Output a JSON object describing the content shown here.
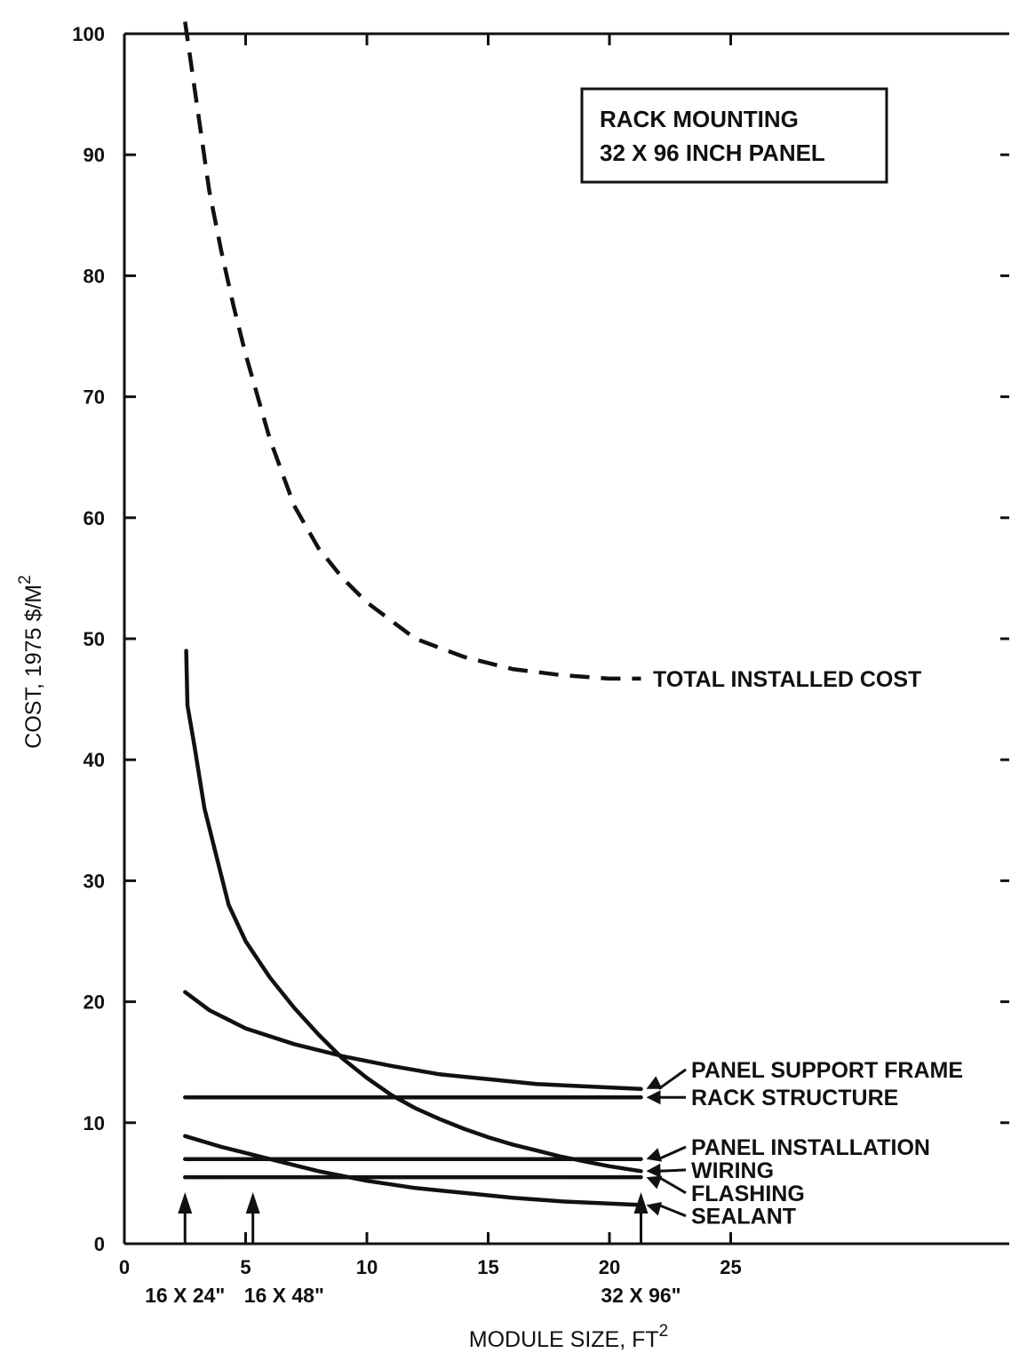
{
  "chart_data": {
    "type": "line",
    "title": "",
    "xlabel": "MODULE SIZE, FT",
    "xlabel_sup": "2",
    "ylabel": "COST, 1975 $/M",
    "ylabel_sup": "2",
    "xlim": [
      0,
      29
    ],
    "ylim": [
      0,
      100
    ],
    "x_ticks": [
      0,
      5,
      10,
      15,
      20,
      25
    ],
    "y_ticks": [
      0,
      10,
      20,
      30,
      40,
      50,
      60,
      70,
      80,
      90,
      100
    ],
    "grid": false,
    "annotation_box": [
      "RACK MOUNTING",
      "32 X 96 INCH PANEL"
    ],
    "markers": [
      {
        "x": 2.5,
        "label": "16 X 24\""
      },
      {
        "x": 5.3,
        "label": "16 X 48\""
      },
      {
        "x": 21.3,
        "label": "32 X 96\""
      }
    ],
    "series": [
      {
        "name": "TOTAL INSTALLED COST",
        "style": "dashed",
        "points": [
          [
            2.5,
            101
          ],
          [
            3,
            94
          ],
          [
            3.5,
            87
          ],
          [
            4,
            82
          ],
          [
            4.5,
            77.5
          ],
          [
            5,
            73.5
          ],
          [
            5.5,
            70
          ],
          [
            6,
            66.5
          ],
          [
            7,
            61
          ],
          [
            8,
            57.5
          ],
          [
            9,
            55
          ],
          [
            10,
            53
          ],
          [
            11,
            51.5
          ],
          [
            12,
            50
          ],
          [
            14,
            48.5
          ],
          [
            16,
            47.5
          ],
          [
            18,
            47
          ],
          [
            20,
            46.7
          ],
          [
            21.3,
            46.7
          ]
        ]
      },
      {
        "name": "PANEL SUPPORT FRAME",
        "style": "solid",
        "points": [
          [
            2.5,
            20.8
          ],
          [
            3.5,
            19.3
          ],
          [
            5,
            17.8
          ],
          [
            7,
            16.5
          ],
          [
            9,
            15.5
          ],
          [
            11,
            14.7
          ],
          [
            13,
            14
          ],
          [
            15,
            13.6
          ],
          [
            17,
            13.2
          ],
          [
            19,
            13
          ],
          [
            21.3,
            12.8
          ]
        ]
      },
      {
        "name": "RACK STRUCTURE",
        "style": "solid",
        "points": [
          [
            2.5,
            12.1
          ],
          [
            21.3,
            12.1
          ]
        ]
      },
      {
        "name": "PANEL INSTALLATION",
        "style": "solid",
        "points": [
          [
            2.5,
            7
          ],
          [
            21.3,
            7
          ]
        ]
      },
      {
        "name": "WIRING",
        "style": "solid",
        "points": [
          [
            2.55,
            49
          ],
          [
            2.6,
            44.5
          ],
          [
            2.9,
            41
          ],
          [
            3.3,
            36
          ],
          [
            3.8,
            32
          ],
          [
            4.3,
            28
          ],
          [
            5,
            25
          ],
          [
            6,
            22
          ],
          [
            7,
            19.5
          ],
          [
            8,
            17.3
          ],
          [
            9,
            15.3
          ],
          [
            10,
            13.7
          ],
          [
            11,
            12.3
          ],
          [
            12,
            11.2
          ],
          [
            13,
            10.3
          ],
          [
            14,
            9.5
          ],
          [
            15,
            8.8
          ],
          [
            16,
            8.2
          ],
          [
            17,
            7.7
          ],
          [
            18,
            7.2
          ],
          [
            19,
            6.8
          ],
          [
            20,
            6.4
          ],
          [
            21.3,
            6
          ]
        ]
      },
      {
        "name": "FLASHING",
        "style": "solid",
        "points": [
          [
            2.5,
            5.5
          ],
          [
            21.3,
            5.5
          ]
        ]
      },
      {
        "name": "SEALANT",
        "style": "solid",
        "points": [
          [
            2.5,
            8.9
          ],
          [
            4,
            8
          ],
          [
            6,
            7
          ],
          [
            8,
            6
          ],
          [
            10,
            5.2
          ],
          [
            12,
            4.6
          ],
          [
            14,
            4.2
          ],
          [
            16,
            3.8
          ],
          [
            18,
            3.5
          ],
          [
            21.3,
            3.2
          ]
        ]
      }
    ],
    "series_label_positions": [
      {
        "series": "TOTAL INSTALLED COST",
        "label_y": 46.7
      },
      {
        "series": "PANEL SUPPORT FRAME",
        "label_y": 14.4
      },
      {
        "series": "RACK STRUCTURE",
        "label_y": 12.1
      },
      {
        "series": "PANEL INSTALLATION",
        "label_y": 8
      },
      {
        "series": "WIRING",
        "label_y": 6.1
      },
      {
        "series": "FLASHING",
        "label_y": 4.2
      },
      {
        "series": "SEALANT",
        "label_y": 2.3
      }
    ]
  }
}
